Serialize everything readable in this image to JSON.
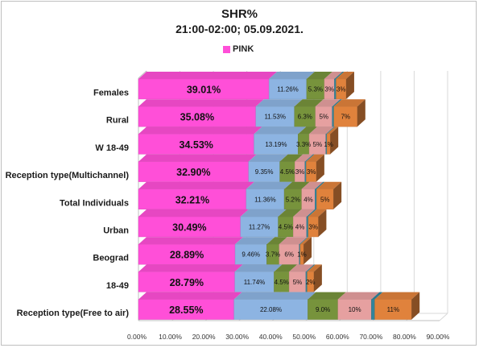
{
  "title": "SHR%",
  "subtitle": "21:00-02:00; 05.09.2021.",
  "legend": {
    "label": "PINK",
    "color": "#ff4fd8"
  },
  "chart_data": {
    "type": "bar",
    "orientation": "horizontal",
    "stacked": true,
    "title": "SHR%",
    "subtitle": "21:00-02:00; 05.09.2021.",
    "xlim": [
      0,
      90
    ],
    "x_ticks": [
      "0.00%",
      "10.00%",
      "20.00%",
      "30.00%",
      "40.00%",
      "50.00%",
      "60.00%",
      "70.00%",
      "80.00%",
      "90.00%"
    ],
    "categories": [
      "Females",
      "Rural",
      "W 18-49",
      "Reception type(Multichannel)",
      "Total Individuals",
      "Urban",
      "Beograd",
      "18-49",
      "Reception type(Free to air)"
    ],
    "segment_colors": [
      "#ff4fd8",
      "#8db4e2",
      "#77933c",
      "#e6a0a0",
      "#31849b",
      "#e0823c"
    ],
    "series": [
      {
        "name": "PINK",
        "values": [
          39.01,
          35.08,
          34.53,
          32.9,
          32.21,
          30.49,
          28.89,
          28.79,
          28.55
        ],
        "labels": [
          "39.01%",
          "35.08%",
          "34.53%",
          "32.90%",
          "32.21%",
          "30.49%",
          "28.89%",
          "28.79%",
          "28.55%"
        ]
      },
      {
        "values": [
          11.26,
          11.53,
          13.19,
          9.35,
          11.36,
          11.27,
          9.46,
          11.74,
          22.08
        ],
        "labels": [
          "11.26%",
          "11.53%",
          "13.19%",
          "9.35%",
          "11.36%",
          "11.27%",
          "9.46%",
          "11.74%",
          "22.08%"
        ]
      },
      {
        "values": [
          5.3,
          6.3,
          3.3,
          4.5,
          5.2,
          4.5,
          3.7,
          4.5,
          9.0
        ],
        "labels": [
          "5.3%",
          "6.3%",
          "3.3%",
          "4.5%",
          "5.2%",
          "4.5%",
          "3.7%",
          "4.5%",
          "9.0%"
        ]
      },
      {
        "values": [
          3,
          5,
          5,
          3,
          4,
          4,
          6,
          5,
          10
        ],
        "labels": [
          "3%",
          "5%",
          "5%",
          "3%",
          "4%",
          "4%",
          "6%",
          "5%",
          "10%"
        ]
      },
      {
        "values": [
          0.5,
          0.5,
          0.3,
          0.4,
          0.5,
          0.5,
          0.3,
          0.4,
          1.0
        ],
        "labels": [
          "",
          "",
          "",
          "",
          "",
          "",
          "",
          "",
          ""
        ]
      },
      {
        "values": [
          3,
          7,
          1,
          3,
          5,
          3,
          1,
          2,
          11
        ],
        "labels": [
          "3%",
          "7%",
          "1%",
          "3%",
          "5%",
          "3%",
          "1%",
          "2%",
          "11%"
        ]
      }
    ]
  }
}
